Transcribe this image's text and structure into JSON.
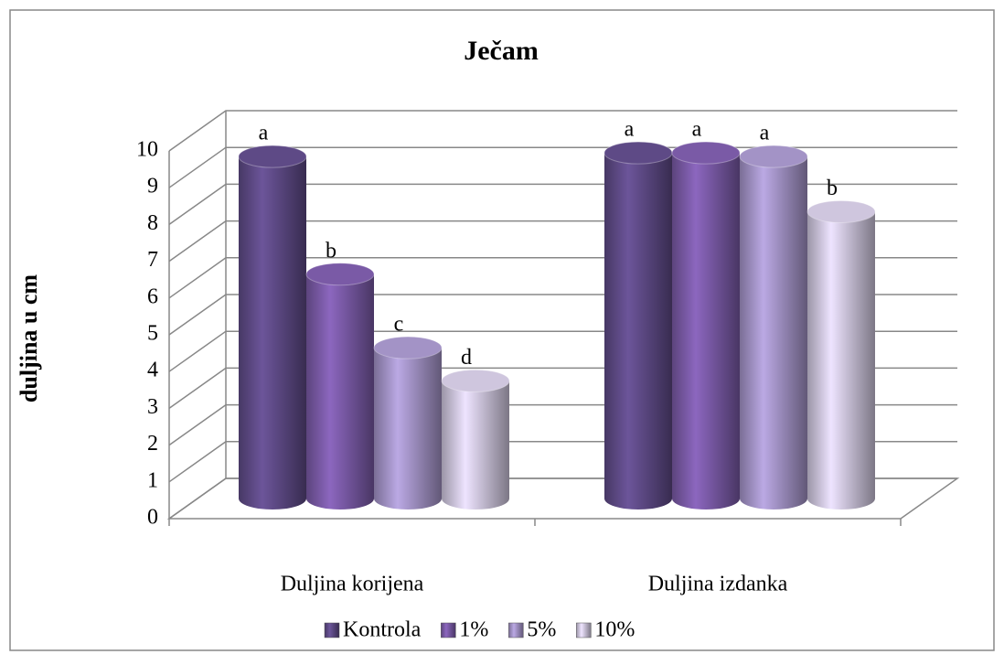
{
  "chart_data": {
    "type": "bar3d",
    "title": "Ječam",
    "y_label": "duljina u cm",
    "categories": [
      "Duljina korijena",
      "Duljina izdanka"
    ],
    "series": [
      {
        "name": "Kontrola",
        "color": "#5e4a86",
        "values": [
          9.3,
          9.4
        ],
        "labels": [
          "a",
          "a"
        ]
      },
      {
        "name": "1%",
        "color": "#7a5aa6",
        "values": [
          6.1,
          9.4
        ],
        "labels": [
          "b",
          "a"
        ]
      },
      {
        "name": "5%",
        "color": "#a393c6",
        "values": [
          4.1,
          9.3
        ],
        "labels": [
          "c",
          "a"
        ]
      },
      {
        "name": "10%",
        "color": "#cfc6de",
        "values": [
          3.2,
          7.8
        ],
        "labels": [
          "d",
          "b"
        ]
      }
    ],
    "ylim": [
      0,
      10
    ],
    "yticks": [
      0,
      1,
      2,
      3,
      4,
      5,
      6,
      7,
      8,
      9,
      10
    ],
    "grid": true,
    "legend": "bottom"
  }
}
